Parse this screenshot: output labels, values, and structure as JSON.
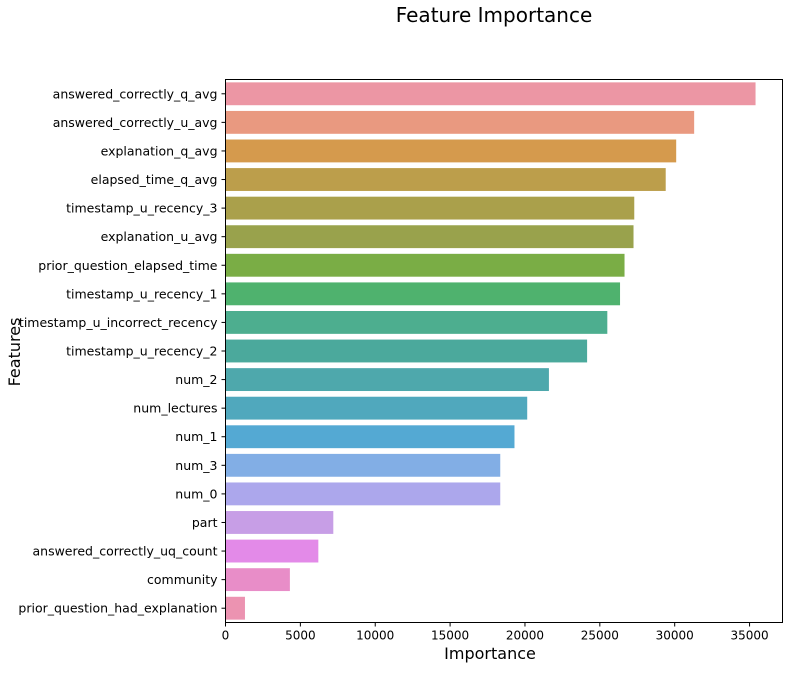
{
  "chart_data": {
    "type": "bar",
    "orientation": "horizontal",
    "title": "Feature Importance",
    "xlabel": "Importance",
    "ylabel": "Features",
    "xlim": [
      0,
      37200
    ],
    "xticks": [
      0,
      5000,
      10000,
      15000,
      20000,
      25000,
      30000,
      35000
    ],
    "grid": false,
    "categories": [
      "answered_correctly_q_avg",
      "answered_correctly_u_avg",
      "explanation_q_avg",
      "elapsed_time_q_avg",
      "timestamp_u_recency_3",
      "explanation_u_avg",
      "prior_question_elapsed_time",
      "timestamp_u_recency_1",
      "timestamp_u_incorrect_recency",
      "timestamp_u_recency_2",
      "num_2",
      "num_lectures",
      "num_1",
      "num_3",
      "num_0",
      "part",
      "answered_correctly_uq_count",
      "community",
      "prior_question_had_explanation"
    ],
    "values": [
      35400,
      31300,
      30100,
      29400,
      27300,
      27250,
      26650,
      26350,
      25500,
      24150,
      21600,
      20150,
      19300,
      18350,
      18350,
      7200,
      6200,
      4300,
      1300
    ],
    "colors": [
      "#ec96a4",
      "#e99980",
      "#d59a4d",
      "#bc9e4b",
      "#aaa04b",
      "#99a24c",
      "#7aad45",
      "#4fb26e",
      "#4dae8f",
      "#4ba99c",
      "#4ea8ac",
      "#50a8bd",
      "#54a9d3",
      "#82aee5",
      "#aca7ec",
      "#c79ee6",
      "#e38ae8",
      "#e88dc8",
      "#ec93b1"
    ]
  }
}
